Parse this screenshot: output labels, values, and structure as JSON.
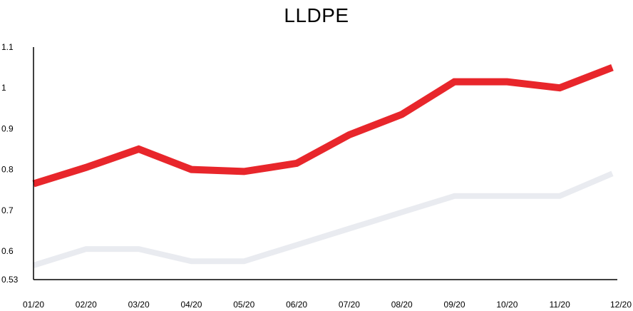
{
  "chart_data": {
    "type": "line",
    "title": "LLDPE",
    "xlabel": "",
    "ylabel": "",
    "categories": [
      "01/20",
      "02/20",
      "03/20",
      "04/20",
      "05/20",
      "06/20",
      "07/20",
      "08/20",
      "09/20",
      "10/20",
      "11/20",
      "12/20"
    ],
    "y_ticks": [
      "0.53",
      "0.6",
      "0.7",
      "0.8",
      "0.9",
      "1",
      "1.1"
    ],
    "y_tick_values": [
      0.53,
      0.6,
      0.7,
      0.8,
      0.9,
      1,
      1.1
    ],
    "ylim": [
      0.53,
      1.1
    ],
    "grid": false,
    "series": [
      {
        "color": "#e8262b",
        "values": [
          0.765,
          0.805,
          0.85,
          0.8,
          0.795,
          0.815,
          0.885,
          0.935,
          1.015,
          1.015,
          1.0,
          1.05
        ]
      },
      {
        "color": "#e9ebf0",
        "values": [
          0.565,
          0.605,
          0.605,
          0.575,
          0.575,
          0.615,
          0.655,
          0.695,
          0.735,
          0.735,
          0.735,
          0.79
        ]
      }
    ]
  }
}
